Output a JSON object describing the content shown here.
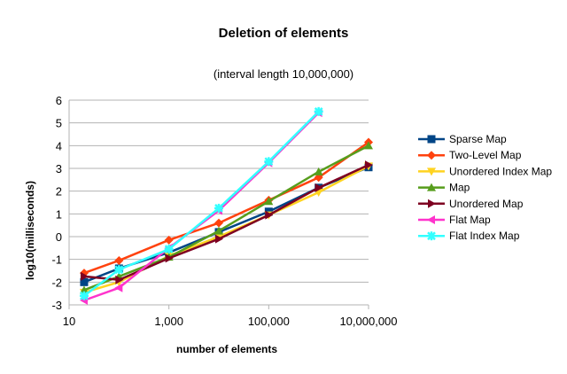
{
  "chart_data": {
    "type": "line",
    "title": "Deletion of elements",
    "subtitle": "(interval length 10,000,000)",
    "xlabel": "number of elements",
    "ylabel": "log10(milliseconds)",
    "x_scale": "log",
    "x_tick_labels": [
      "10",
      "1,000",
      "100,000",
      "10,000,000"
    ],
    "x_ticks": [
      10,
      1000,
      100000,
      10000000
    ],
    "xlim": [
      10,
      10000000
    ],
    "y_ticks": [
      -3,
      -2,
      -1,
      0,
      1,
      2,
      3,
      4,
      5,
      6
    ],
    "ylim": [
      -3,
      6
    ],
    "grid": "horizontal",
    "legend_position": "right",
    "x": [
      20,
      100,
      1000,
      10000,
      100000,
      1000000,
      10000000
    ],
    "series": [
      {
        "name": "Sparse Map",
        "color": "#004586",
        "marker": "square",
        "values": [
          -2.0,
          -1.4,
          -0.7,
          0.2,
          1.1,
          2.15,
          3.05
        ]
      },
      {
        "name": "Two-Level Map",
        "color": "#ff420e",
        "marker": "diamond",
        "values": [
          -1.6,
          -1.05,
          -0.15,
          0.6,
          1.6,
          2.6,
          4.15
        ]
      },
      {
        "name": "Unordered Index Map",
        "color": "#ffd320",
        "marker": "triangle-down",
        "values": [
          -2.45,
          -2.0,
          -0.85,
          0.0,
          0.95,
          1.95,
          3.1
        ]
      },
      {
        "name": "Map",
        "color": "#579d1c",
        "marker": "triangle-up",
        "values": [
          -2.35,
          -1.75,
          -0.9,
          0.25,
          1.55,
          2.85,
          4.0
        ]
      },
      {
        "name": "Unordered Map",
        "color": "#7e0021",
        "marker": "triangle-right",
        "values": [
          -1.75,
          -1.9,
          -0.95,
          -0.1,
          0.95,
          2.15,
          3.15
        ]
      },
      {
        "name": "Flat Map",
        "color": "#ff33cc",
        "marker": "triangle-left",
        "values": [
          -2.8,
          -2.25,
          -0.5,
          1.15,
          3.25,
          5.45,
          null
        ]
      },
      {
        "name": "Flat Index Map",
        "color": "#33ffff",
        "marker": "asterisk",
        "values": [
          -2.6,
          -1.45,
          -0.55,
          1.25,
          3.3,
          5.5,
          null
        ]
      }
    ]
  }
}
